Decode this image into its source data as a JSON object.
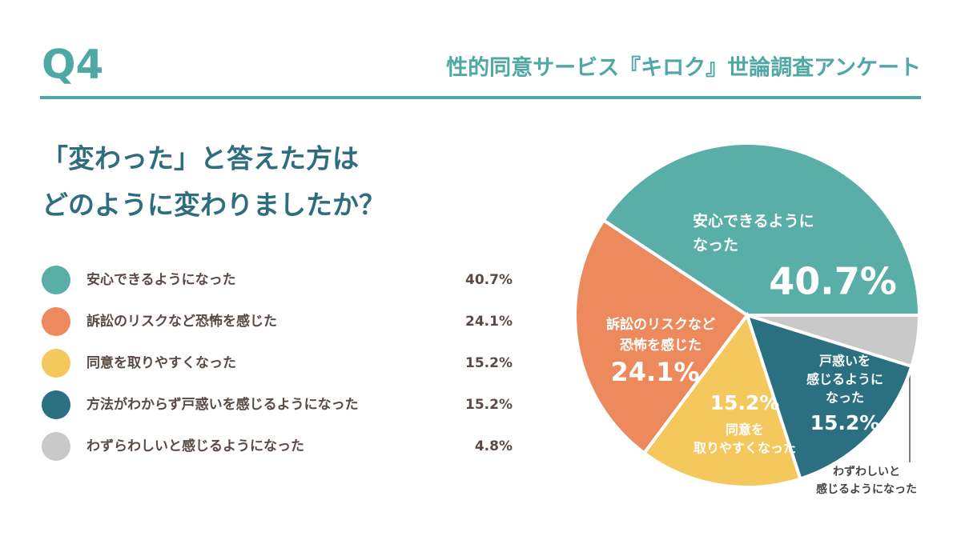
{
  "header": {
    "number": "Q4",
    "title": "性的同意サービス『キロク』世論調査アンケート"
  },
  "question": [
    "「変わった」と答えた方は",
    "どのように変わりましたか？"
  ],
  "chart_data": {
    "type": "pie",
    "categories": [
      "安心できるようになった",
      "訴訟のリスクなど恐怖を感じた",
      "同意を取りやすくなった",
      "方法がわからず戸惑いを感じるようになった",
      "わずらわしいと感じるようになった"
    ],
    "values": [
      40.7,
      24.1,
      15.2,
      15.2,
      4.8
    ],
    "value_labels": [
      "40.7%",
      "24.1%",
      "15.2%",
      "15.2%",
      "4.8%"
    ],
    "slice_labels": [
      [
        "安心できるように",
        "なった"
      ],
      [
        "訴訟のリスクなど",
        "恐怖を感じた"
      ],
      [
        "同意を",
        "取りやすくなった"
      ],
      [
        "戸惑いを",
        "感じるように",
        "なった"
      ],
      [
        "わずわしいと",
        "感じるようになった"
      ]
    ],
    "colors": [
      "#5aaea8",
      "#ec8a5d",
      "#f5c85e",
      "#2a7080",
      "#c9c9c9"
    ]
  }
}
